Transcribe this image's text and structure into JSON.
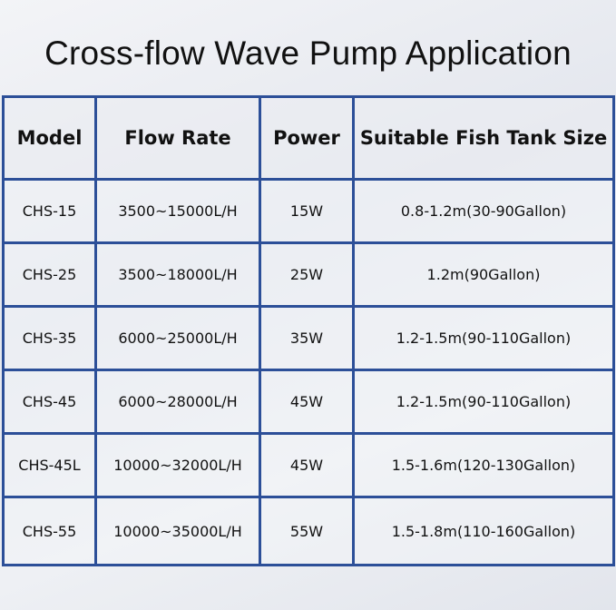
{
  "title": "Cross-flow Wave Pump Application",
  "colors": {
    "border": "#2c4f98"
  },
  "table": {
    "headers": [
      "Model",
      "Flow Rate",
      "Power",
      "Suitable Fish Tank Size"
    ],
    "rows": [
      [
        "CHS-15",
        "3500~15000L/H",
        "15W",
        "0.8-1.2m(30-90Gallon)"
      ],
      [
        "CHS-25",
        "3500~18000L/H",
        "25W",
        "1.2m(90Gallon)"
      ],
      [
        "CHS-35",
        "6000~25000L/H",
        "35W",
        "1.2-1.5m(90-110Gallon)"
      ],
      [
        "CHS-45",
        "6000~28000L/H",
        "45W",
        "1.2-1.5m(90-110Gallon)"
      ],
      [
        "CHS-45L",
        "10000~32000L/H",
        "45W",
        "1.5-1.6m(120-130Gallon)"
      ],
      [
        "CHS-55",
        "10000~35000L/H",
        "55W",
        "1.5-1.8m(110-160Gallon)"
      ]
    ]
  }
}
